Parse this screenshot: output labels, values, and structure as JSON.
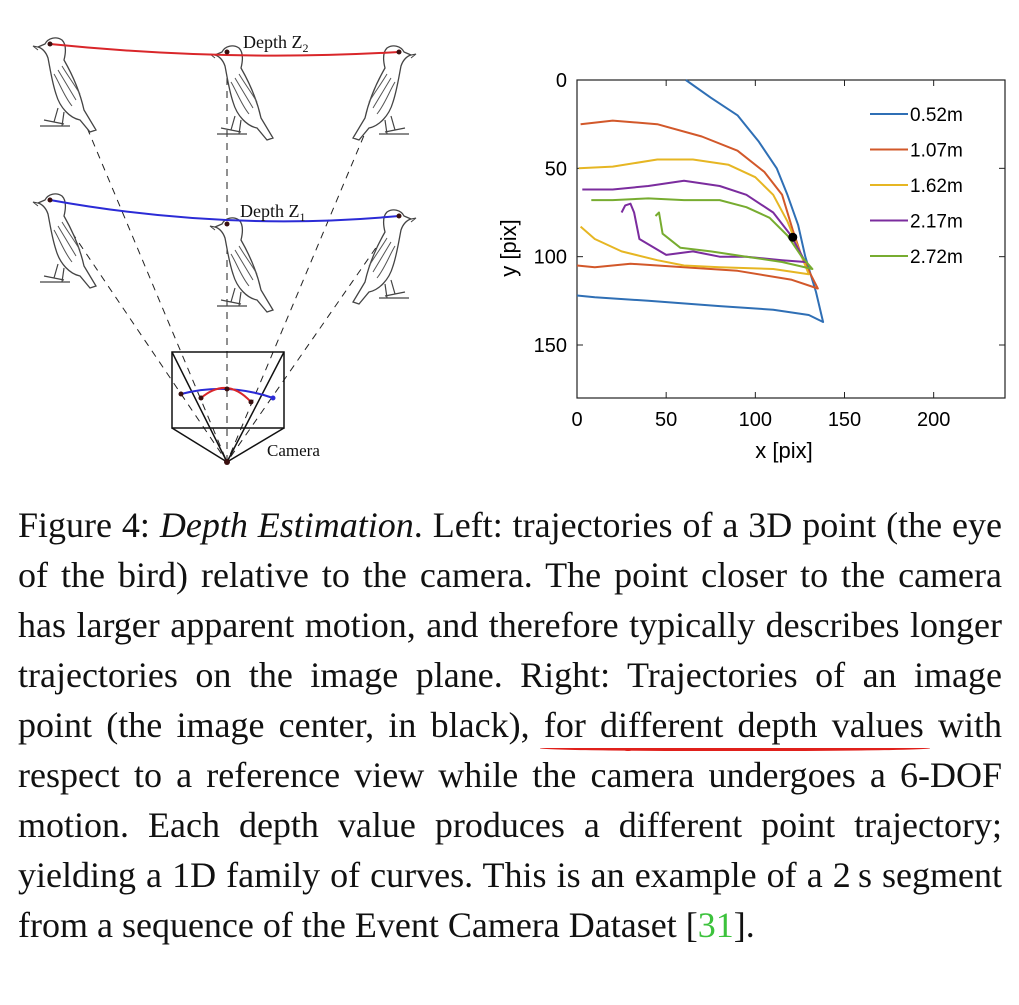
{
  "left_diagram": {
    "depth2_label": "Depth Z",
    "depth2_sub": "2",
    "depth1_label": "Depth Z",
    "depth1_sub": "1",
    "camera_label": "Camera",
    "colors": {
      "depth2": "#d9262a",
      "depth1": "#2b2bd6"
    }
  },
  "chart_data": {
    "type": "line",
    "xlabel": "x [pix]",
    "ylabel": "y [pix]",
    "xlim": [
      0,
      240
    ],
    "ylim": [
      0,
      180
    ],
    "y_inverted": true,
    "x_ticks": [
      0,
      50,
      100,
      150,
      200
    ],
    "y_ticks": [
      0,
      50,
      100,
      150
    ],
    "legend_position": "top-right",
    "series": [
      {
        "name": "0.52m",
        "color": "#2f6fb5",
        "points": [
          [
            61,
            0
          ],
          [
            75,
            10
          ],
          [
            90,
            20
          ],
          [
            102,
            35
          ],
          [
            112,
            50
          ],
          [
            118,
            65
          ],
          [
            124,
            82
          ],
          [
            128,
            100
          ],
          [
            134,
            120
          ],
          [
            138,
            137
          ],
          [
            130,
            133
          ],
          [
            110,
            130
          ],
          [
            80,
            128
          ],
          [
            40,
            125
          ],
          [
            10,
            123
          ],
          [
            0,
            122
          ]
        ]
      },
      {
        "name": "1.07m",
        "color": "#d2582a",
        "points": [
          [
            2,
            25
          ],
          [
            20,
            23
          ],
          [
            45,
            25
          ],
          [
            70,
            32
          ],
          [
            90,
            40
          ],
          [
            105,
            52
          ],
          [
            115,
            65
          ],
          [
            121,
            85
          ],
          [
            126,
            100
          ],
          [
            135,
            118
          ],
          [
            120,
            113
          ],
          [
            90,
            108
          ],
          [
            60,
            106
          ],
          [
            30,
            104
          ],
          [
            10,
            106
          ],
          [
            0,
            105
          ]
        ]
      },
      {
        "name": "1.62m",
        "color": "#e6b623",
        "points": [
          [
            1,
            50
          ],
          [
            20,
            49
          ],
          [
            45,
            45
          ],
          [
            65,
            45
          ],
          [
            85,
            48
          ],
          [
            100,
            55
          ],
          [
            110,
            65
          ],
          [
            118,
            80
          ],
          [
            124,
            95
          ],
          [
            130,
            110
          ],
          [
            110,
            107
          ],
          [
            80,
            106
          ],
          [
            60,
            105
          ],
          [
            45,
            102
          ],
          [
            25,
            97
          ],
          [
            10,
            90
          ],
          [
            2,
            83
          ]
        ]
      },
      {
        "name": "2.17m",
        "color": "#7b2c9e",
        "points": [
          [
            3,
            62
          ],
          [
            20,
            62
          ],
          [
            40,
            60
          ],
          [
            60,
            57
          ],
          [
            80,
            60
          ],
          [
            95,
            65
          ],
          [
            110,
            75
          ],
          [
            120,
            88
          ],
          [
            128,
            103
          ],
          [
            115,
            102
          ],
          [
            95,
            100
          ],
          [
            80,
            100
          ],
          [
            65,
            97
          ],
          [
            50,
            99
          ],
          [
            35,
            90
          ],
          [
            32,
            75
          ],
          [
            30,
            70
          ],
          [
            27,
            71
          ],
          [
            25,
            75
          ]
        ]
      },
      {
        "name": "2.72m",
        "color": "#77ac30",
        "points": [
          [
            8,
            68
          ],
          [
            20,
            68
          ],
          [
            40,
            67
          ],
          [
            60,
            68
          ],
          [
            80,
            68
          ],
          [
            95,
            72
          ],
          [
            108,
            78
          ],
          [
            118,
            88
          ],
          [
            126,
            100
          ],
          [
            132,
            107
          ],
          [
            115,
            103
          ],
          [
            95,
            100
          ],
          [
            75,
            97
          ],
          [
            58,
            95
          ],
          [
            48,
            87
          ],
          [
            46,
            75
          ],
          [
            44,
            77
          ]
        ]
      }
    ],
    "marker": {
      "x": 121,
      "y": 89,
      "color": "#000000"
    }
  },
  "caption": {
    "figure_label": "Figure 4:",
    "title": "Depth Estimation",
    "text_a": ". Left: trajectories of a 3D point (the eye of the bird) relative to the camera. The point closer to the camera has larger apparent motion, and therefore typically describes longer trajectories on the image plane. Right: ",
    "underline_1": "Trajectories of an image point",
    "text_b": " (the image center, in black), ",
    "underline_2": "for different depth values",
    "text_c": " with respect to a reference view while the camera undergoes a 6-DOF motion.  Each depth value produces a different point trajectory; yielding a 1D family of curves.  This is an example of a 2 s segment from a sequence of the Event Camera Dataset [",
    "citation": "31",
    "text_d": "]."
  }
}
